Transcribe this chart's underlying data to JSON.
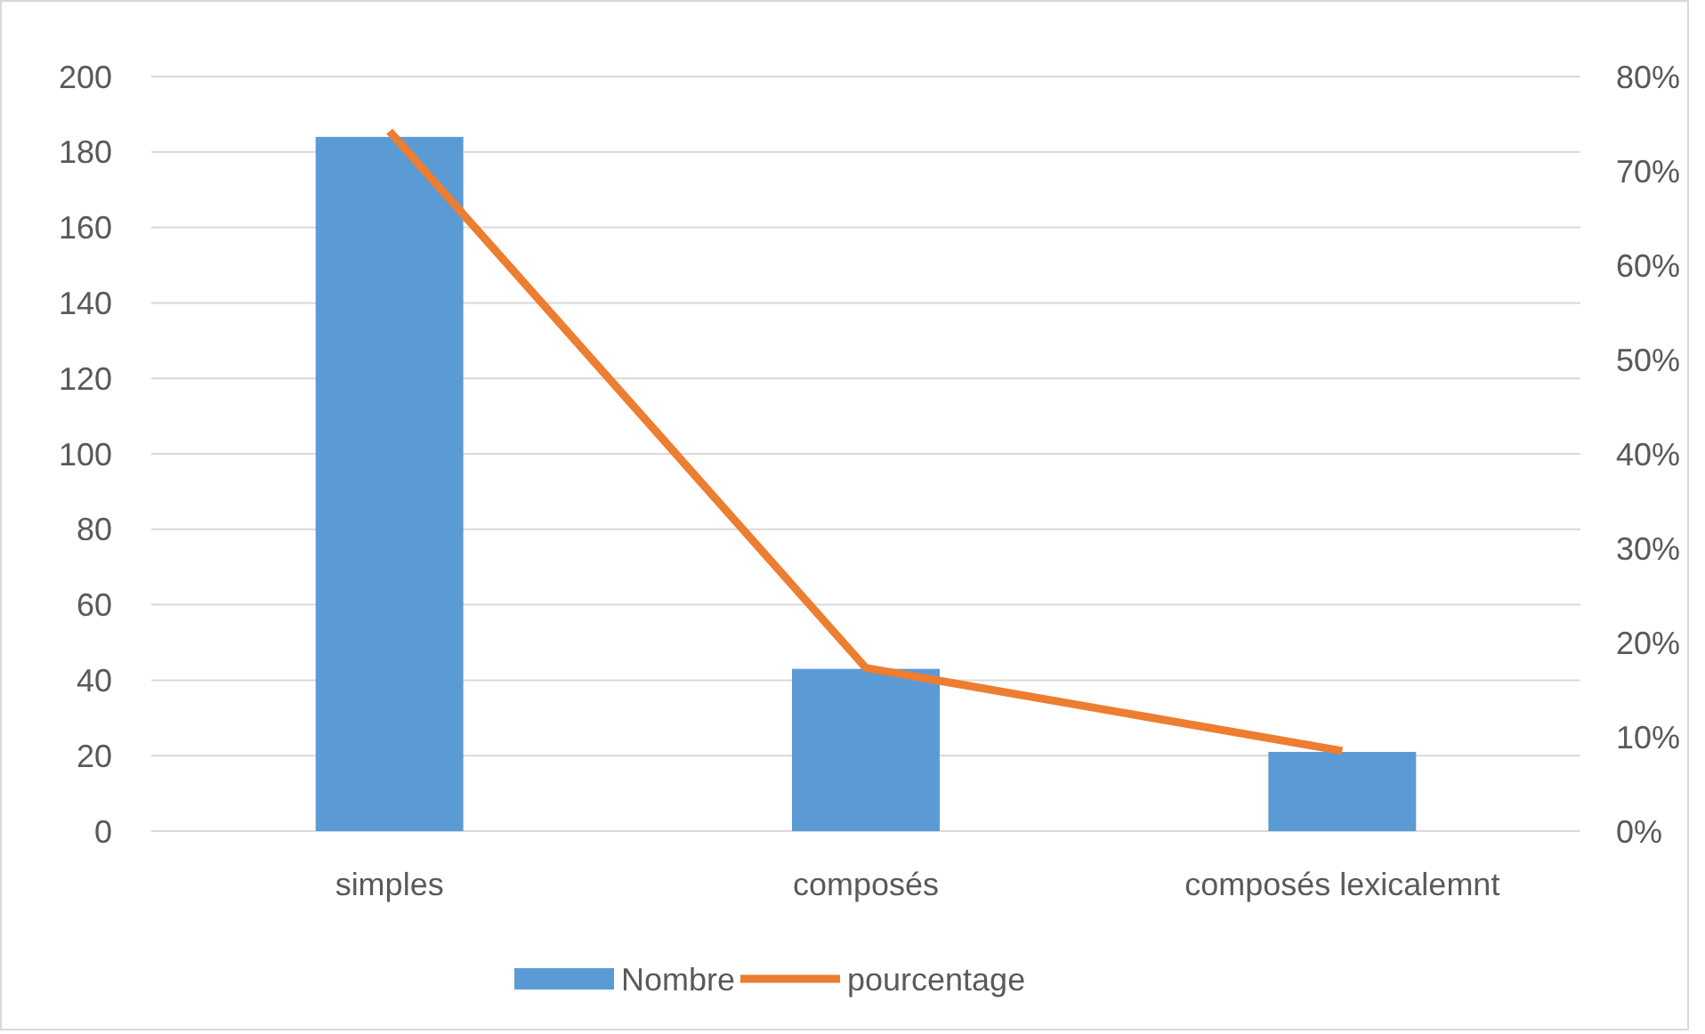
{
  "chart_data": {
    "type": "bar",
    "categories": [
      "simples",
      "composés",
      "composés lexicalemnt"
    ],
    "series": [
      {
        "name": "Nombre",
        "color": "#5b9bd5",
        "values": [
          184,
          43,
          21
        ]
      },
      {
        "name": "pourcentage",
        "type": "line",
        "axis": "y2",
        "color": "#ed7d31",
        "values": [
          74.2,
          17.3,
          8.5
        ]
      }
    ],
    "ylim": [
      0,
      200
    ],
    "yticks": [
      0,
      20,
      40,
      60,
      80,
      100,
      120,
      140,
      160,
      180,
      200
    ],
    "y2lim": [
      0,
      80
    ],
    "y2ticks": [
      {
        "value": 0,
        "label": "0%"
      },
      {
        "value": 10,
        "label": "10%"
      },
      {
        "value": 20,
        "label": "20%"
      },
      {
        "value": 30,
        "label": "30%"
      },
      {
        "value": 40,
        "label": "40%"
      },
      {
        "value": 50,
        "label": "50%"
      },
      {
        "value": 60,
        "label": "60%"
      },
      {
        "value": 70,
        "label": "70%"
      },
      {
        "value": 80,
        "label": "80%"
      }
    ],
    "grid": "y",
    "legend": "bottom",
    "marker": "none"
  }
}
